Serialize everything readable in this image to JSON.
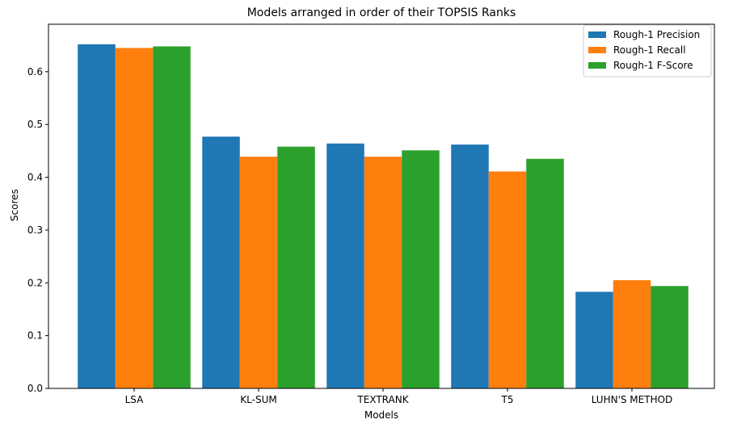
{
  "chart_data": {
    "type": "bar",
    "title": "Models arranged in order of their TOPSIS Ranks",
    "xlabel": "Models",
    "ylabel": "Scores",
    "categories": [
      "LSA",
      "KL-SUM",
      "TEXTRANK",
      "T5",
      "LUHN'S METHOD"
    ],
    "series": [
      {
        "name": "Rough-1 Precision",
        "color": "#1f77b4",
        "values": [
          0.652,
          0.477,
          0.464,
          0.462,
          0.183
        ]
      },
      {
        "name": "Rough-1 Recall",
        "color": "#ff7f0e",
        "values": [
          0.645,
          0.439,
          0.439,
          0.411,
          0.205
        ]
      },
      {
        "name": "Rough-1 F-Score",
        "color": "#2ca02c",
        "values": [
          0.648,
          0.458,
          0.451,
          0.435,
          0.194
        ]
      }
    ],
    "ylim": [
      0,
      0.69
    ],
    "yticks": [
      "0.0",
      "0.1",
      "0.2",
      "0.3",
      "0.4",
      "0.5",
      "0.6"
    ],
    "grid": false,
    "legend_position": "top-right"
  }
}
